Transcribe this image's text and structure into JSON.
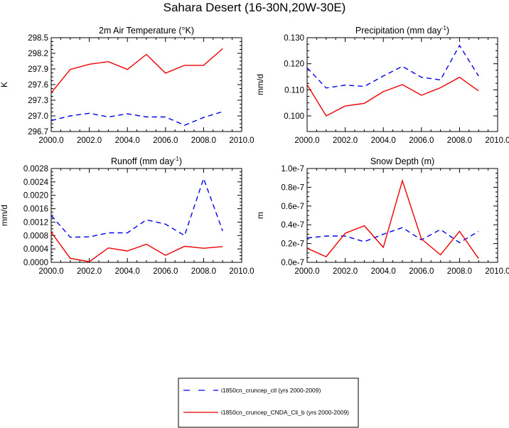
{
  "title": "Sahara Desert (16-30N,20W-30E)",
  "colors": {
    "ctl": "#0000ee",
    "cnda": "#ee0000"
  },
  "legend": [
    {
      "label": "i1850cn_cruncep_ctl (yrs 2000-2009)",
      "style": "dashed",
      "color": "#0000ee"
    },
    {
      "label": "i1850cn_cruncep_CNDA_Cli_b (yrs 2000-2009)",
      "style": "solid",
      "color": "#ee0000"
    }
  ],
  "chart_data": [
    {
      "type": "line",
      "title": "2m Air Temperature (°K)",
      "ylabel": "K",
      "xlim": [
        2000,
        2010
      ],
      "ylim": [
        296.7,
        298.5
      ],
      "xticks": [
        "2000.0",
        "2002.0",
        "2004.0",
        "2006.0",
        "2008.0",
        "2010.0"
      ],
      "yticks": [
        "296.7",
        "297.0",
        "297.3",
        "297.6",
        "297.9",
        "298.2",
        "298.5"
      ],
      "x": [
        2000,
        2001,
        2002,
        2003,
        2004,
        2005,
        2006,
        2007,
        2008,
        2009
      ],
      "series": [
        {
          "name": "i1850cn_cruncep_ctl (yrs 2000-2009)",
          "style": "dashed",
          "values": [
            296.91,
            297.0,
            297.05,
            296.98,
            297.04,
            296.98,
            296.98,
            296.82,
            296.97,
            297.08
          ]
        },
        {
          "name": "i1850cn_cruncep_CNDA_Cli_b (yrs 2000-2009)",
          "style": "solid",
          "values": [
            297.44,
            297.89,
            297.99,
            298.04,
            297.89,
            298.18,
            297.82,
            297.97,
            297.97,
            298.29
          ]
        }
      ]
    },
    {
      "type": "line",
      "title": "Precipitation (mm day-1)",
      "ylabel": "mm/d",
      "xlim": [
        2000,
        2010
      ],
      "ylim": [
        0.094,
        0.13
      ],
      "xticks": [
        "2000.0",
        "2002.0",
        "2004.0",
        "2006.0",
        "2008.0",
        "2010.0"
      ],
      "yticks": [
        "0.100",
        "0.110",
        "0.120",
        "0.130"
      ],
      "x": [
        2000,
        2001,
        2002,
        2003,
        2004,
        2005,
        2006,
        2007,
        2008,
        2009
      ],
      "series": [
        {
          "name": "i1850cn_cruncep_ctl (yrs 2000-2009)",
          "style": "dashed",
          "values": [
            0.1185,
            0.1107,
            0.1118,
            0.1113,
            0.1153,
            0.119,
            0.1148,
            0.1138,
            0.127,
            0.1153
          ]
        },
        {
          "name": "i1850cn_cruncep_CNDA_Cli_b (yrs 2000-2009)",
          "style": "solid",
          "values": [
            0.112,
            0.1,
            0.1038,
            0.1048,
            0.1093,
            0.112,
            0.1079,
            0.1108,
            0.1148,
            0.1096
          ]
        }
      ]
    },
    {
      "type": "line",
      "title": "Runoff (mm day-1)",
      "ylabel": "mm/d",
      "xlim": [
        2000,
        2010
      ],
      "ylim": [
        0.0,
        0.0028
      ],
      "xticks": [
        "2000.0",
        "2002.0",
        "2004.0",
        "2006.0",
        "2008.0",
        "2010.0"
      ],
      "yticks": [
        "0.0000",
        "0.0004",
        "0.0008",
        "0.0012",
        "0.0016",
        "0.0020",
        "0.0024",
        "0.0028"
      ],
      "x": [
        2000,
        2001,
        2002,
        2003,
        2004,
        2005,
        2006,
        2007,
        2008,
        2009
      ],
      "series": [
        {
          "name": "i1850cn_cruncep_ctl (yrs 2000-2009)",
          "style": "dashed",
          "values": [
            0.0014,
            0.00075,
            0.00076,
            0.00088,
            0.00088,
            0.00127,
            0.00114,
            0.0008,
            0.0025,
            0.00094
          ]
        },
        {
          "name": "i1850cn_cruncep_CNDA_Cli_b (yrs 2000-2009)",
          "style": "solid",
          "values": [
            0.0009,
            0.00012,
            2e-05,
            0.00043,
            0.00034,
            0.00054,
            0.00021,
            0.00048,
            0.00042,
            0.00047
          ]
        }
      ]
    },
    {
      "type": "line",
      "title": "Snow Depth (m)",
      "ylabel": "m",
      "xlim": [
        2000,
        2010
      ],
      "ylim": [
        0.0,
        1e-07
      ],
      "xticks": [
        "2000.0",
        "2002.0",
        "2004.0",
        "2006.0",
        "2008.0",
        "2010.0"
      ],
      "yticks": [
        "0.0e-7",
        "0.2e-7",
        "0.4e-7",
        "0.6e-7",
        "0.8e-7",
        "1.0e-7"
      ],
      "x": [
        2000,
        2001,
        2002,
        2003,
        2004,
        2005,
        2006,
        2007,
        2008,
        2009
      ],
      "series": [
        {
          "name": "i1850cn_cruncep_ctl (yrs 2000-2009)",
          "style": "dashed",
          "values": [
            2.6e-08,
            2.8e-08,
            2.8e-08,
            2.2e-08,
            3e-08,
            3.7e-08,
            2.4e-08,
            3.5e-08,
            2.1e-08,
            3.3e-08
          ]
        },
        {
          "name": "i1850cn_cruncep_CNDA_Cli_b (yrs 2000-2009)",
          "style": "solid",
          "values": [
            1.5e-08,
            6e-09,
            3.1e-08,
            3.9e-08,
            1.6e-08,
            8.7e-08,
            2.5e-08,
            8e-09,
            3.3e-08,
            4e-09
          ]
        }
      ]
    }
  ]
}
